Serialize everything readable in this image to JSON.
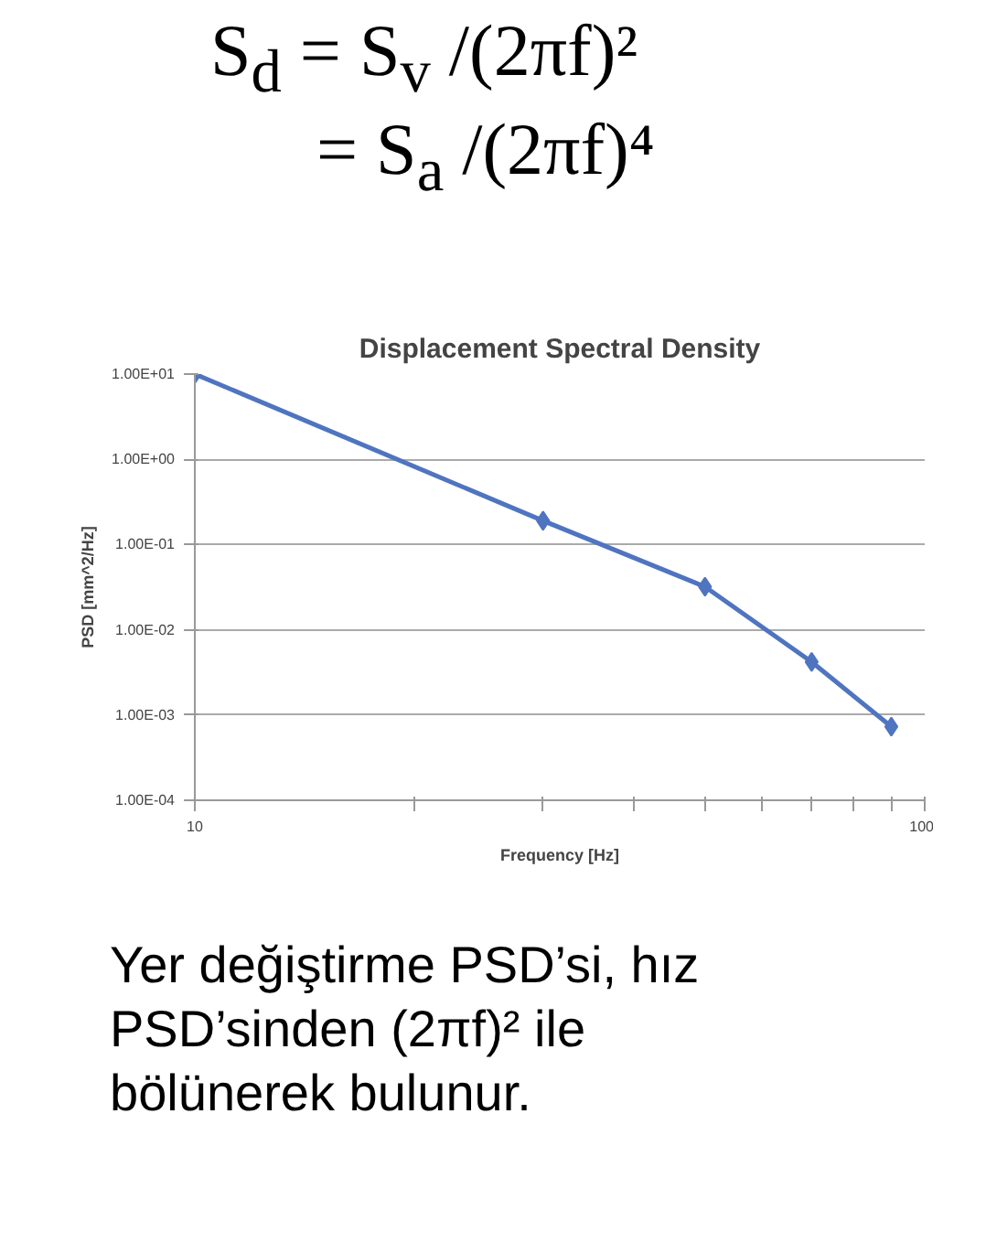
{
  "chart_data": {
    "type": "line",
    "title": "Displacement Spectral Density",
    "xlabel": "Frequency [Hz]",
    "ylabel": "PSD [mm^2/Hz]",
    "x": [
      10,
      30,
      50,
      70,
      90
    ],
    "series": [
      {
        "color": "#4f74c0",
        "values": [
          10,
          0.19,
          0.032,
          0.0042,
          0.00073
        ]
      }
    ],
    "log": "xy",
    "xlim": [
      10,
      100
    ],
    "ylim": [
      0.0001,
      10
    ],
    "xticks": [
      10,
      {
        "value": 20,
        "label": null
      },
      {
        "value": 30,
        "label": null
      },
      {
        "value": 40,
        "label": null
      },
      {
        "value": 50,
        "label": null
      },
      {
        "value": 60,
        "label": null
      },
      {
        "value": 70,
        "label": null
      },
      {
        "value": 80,
        "label": null
      },
      {
        "value": 90,
        "label": null
      },
      100
    ],
    "yticks": [
      {
        "value": 0.0001,
        "label": "1.00E-04"
      },
      {
        "value": 0.001,
        "label": "1.00E-03"
      },
      {
        "value": 0.01,
        "label": "1.00E-02"
      },
      {
        "value": 0.1,
        "label": "1.00E-01"
      },
      {
        "value": 1,
        "label": "1.00E+00"
      },
      {
        "value": 10,
        "label": "1.00E+01"
      }
    ],
    "grid": "y",
    "marker": "diamond",
    "line_style": "solid",
    "annotations": [
      "S$_{d}$ = S$_{v}$ /(2πf)²",
      "= S$_{a}$ /(2πf)⁴",
      "Yer değiştirme PSD’si, hız PSD’sinden (2πf)² ile bölünerek bulunur."
    ]
  }
}
